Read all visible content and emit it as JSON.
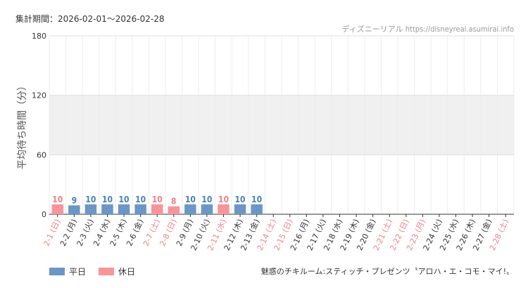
{
  "header": {
    "period": "集計期間：2026-02-01～2026-02-28",
    "source": "ディズニーリアル https://disneyreal.asumirai.info"
  },
  "legend": [
    {
      "label": "平日",
      "color": "#6a97c5"
    },
    {
      "label": "休日",
      "color": "#f7959a"
    }
  ],
  "footer": {
    "attraction": "魅惑のチキルーム:スティッチ・プレゼンツ〝アロハ・エ・コモ・マイ!〟"
  },
  "colors": {
    "weekday_bar": "#6a97c5",
    "holiday_bar": "#f7959a",
    "weekday_text": "#4a7fb5",
    "holiday_text": "#f07f84",
    "band": "#f0f0f0",
    "grid": "#e0e0e0"
  },
  "chart_data": {
    "type": "bar",
    "ylabel": "平均待ち時間（分）",
    "ylim": [
      0,
      180
    ],
    "yticks": [
      0,
      60,
      120,
      180
    ],
    "shaded_band": [
      60,
      120
    ],
    "categories": [
      "2-1 (日)",
      "2-2 (月)",
      "2-3 (火)",
      "2-4 (水)",
      "2-5 (木)",
      "2-6 (金)",
      "2-7 (土)",
      "2-8 (日)",
      "2-9 (月)",
      "2-10 (火)",
      "2-11 (水)",
      "2-12 (木)",
      "2-13 (金)",
      "2-14 (土)",
      "2-15 (日)",
      "2-16 (月)",
      "2-17 (火)",
      "2-18 (水)",
      "2-19 (木)",
      "2-20 (金)",
      "2-21 (土)",
      "2-22 (日)",
      "2-23 (月)",
      "2-24 (火)",
      "2-25 (水)",
      "2-26 (木)",
      "2-27 (金)",
      "2-28 (土)"
    ],
    "values": [
      10,
      9,
      10,
      10,
      10,
      10,
      10,
      8,
      10,
      10,
      10,
      10,
      10,
      null,
      null,
      null,
      null,
      null,
      null,
      null,
      null,
      null,
      null,
      null,
      null,
      null,
      null,
      null
    ],
    "holiday": [
      true,
      false,
      false,
      false,
      false,
      false,
      true,
      true,
      false,
      false,
      true,
      false,
      false,
      true,
      true,
      false,
      false,
      false,
      false,
      false,
      true,
      true,
      true,
      false,
      false,
      false,
      false,
      true
    ],
    "series": [
      {
        "name": "平日"
      },
      {
        "name": "休日"
      }
    ]
  }
}
